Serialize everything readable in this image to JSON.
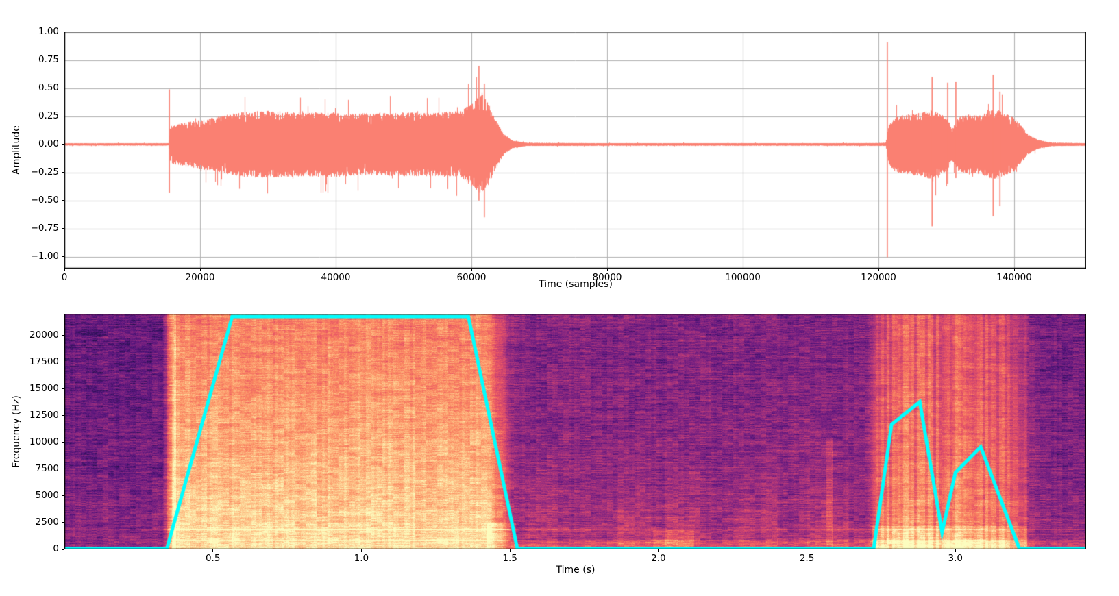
{
  "figure": {
    "background": "#ffffff",
    "text_color": "#000000",
    "grid_color": "#b0b0b0"
  },
  "chart_data": [
    {
      "type": "line",
      "name": "audio-waveform",
      "title": "",
      "xlabel": "Time (samples)",
      "ylabel": "Amplitude",
      "xlim": [
        0,
        150600
      ],
      "ylim": [
        -1.106,
        1.006
      ],
      "grid": true,
      "line_color": "#fa8072",
      "xticks": [
        {
          "v": 0,
          "label": "0"
        },
        {
          "v": 20000,
          "label": "20000"
        },
        {
          "v": 40000,
          "label": "40000"
        },
        {
          "v": 60000,
          "label": "60000"
        },
        {
          "v": 80000,
          "label": "80000"
        },
        {
          "v": 100000,
          "label": "100000"
        },
        {
          "v": 120000,
          "label": "120000"
        },
        {
          "v": 140000,
          "label": "140000"
        }
      ],
      "yticks": [
        {
          "v": 1.0,
          "label": "1.00"
        },
        {
          "v": 0.75,
          "label": "0.75"
        },
        {
          "v": 0.5,
          "label": "0.50"
        },
        {
          "v": 0.25,
          "label": "0.25"
        },
        {
          "v": 0.0,
          "label": "0.00"
        },
        {
          "v": -0.25,
          "label": "−0.25"
        },
        {
          "v": -0.5,
          "label": "−0.50"
        },
        {
          "v": -0.75,
          "label": "−0.75"
        },
        {
          "v": -1.0,
          "label": "−1.00"
        }
      ],
      "noise_floor": 0.01,
      "envelope": [
        [
          0,
          0.008
        ],
        [
          15300,
          0.008
        ],
        [
          15600,
          0.17
        ],
        [
          18000,
          0.2
        ],
        [
          22000,
          0.24
        ],
        [
          26000,
          0.29
        ],
        [
          30000,
          0.3
        ],
        [
          35000,
          0.285
        ],
        [
          40000,
          0.29
        ],
        [
          45000,
          0.275
        ],
        [
          50000,
          0.285
        ],
        [
          55000,
          0.285
        ],
        [
          58500,
          0.3
        ],
        [
          60500,
          0.4
        ],
        [
          61500,
          0.46
        ],
        [
          62500,
          0.36
        ],
        [
          63500,
          0.22
        ],
        [
          64800,
          0.09
        ],
        [
          66000,
          0.035
        ],
        [
          68000,
          0.014
        ],
        [
          80000,
          0.011
        ],
        [
          95000,
          0.011
        ],
        [
          110000,
          0.011
        ],
        [
          119000,
          0.012
        ],
        [
          121000,
          0.014
        ],
        [
          121500,
          0.18
        ],
        [
          122500,
          0.25
        ],
        [
          124500,
          0.27
        ],
        [
          126500,
          0.285
        ],
        [
          127800,
          0.32
        ],
        [
          129000,
          0.27
        ],
        [
          130000,
          0.25
        ],
        [
          130800,
          0.14
        ],
        [
          131800,
          0.25
        ],
        [
          133500,
          0.27
        ],
        [
          135000,
          0.26
        ],
        [
          136500,
          0.31
        ],
        [
          137500,
          0.31
        ],
        [
          138500,
          0.28
        ],
        [
          140000,
          0.24
        ],
        [
          141000,
          0.17
        ],
        [
          142000,
          0.09
        ],
        [
          143500,
          0.04
        ],
        [
          145500,
          0.016
        ],
        [
          150600,
          0.011
        ]
      ],
      "spikes": [
        [
          15470,
          0.49,
          -0.43
        ],
        [
          61100,
          0.7,
          -0.5
        ],
        [
          61900,
          0.54,
          -0.65
        ],
        [
          121300,
          0.91,
          -1.005
        ],
        [
          127900,
          0.6,
          -0.73
        ],
        [
          130200,
          0.55,
          -0.35
        ],
        [
          131400,
          0.56,
          -0.3
        ],
        [
          136900,
          0.62,
          -0.64
        ],
        [
          137900,
          0.47,
          -0.55
        ]
      ]
    },
    {
      "type": "heatmap",
      "name": "spectrogram",
      "title": "",
      "xlabel": "Time (s)",
      "ylabel": "Frequency (Hz)",
      "xlim": [
        0,
        3.44
      ],
      "ylim": [
        0,
        22050
      ],
      "grid": false,
      "colormap": "magma",
      "xticks": [
        {
          "v": 0.5,
          "label": "0.5"
        },
        {
          "v": 1.0,
          "label": "1.0"
        },
        {
          "v": 1.5,
          "label": "1.5"
        },
        {
          "v": 2.0,
          "label": "2.0"
        },
        {
          "v": 2.5,
          "label": "2.5"
        },
        {
          "v": 3.0,
          "label": "3.0"
        }
      ],
      "yticks": [
        {
          "v": 0,
          "label": "0"
        },
        {
          "v": 2500,
          "label": "2500"
        },
        {
          "v": 5000,
          "label": "5000"
        },
        {
          "v": 7500,
          "label": "7500"
        },
        {
          "v": 10000,
          "label": "10000"
        },
        {
          "v": 12500,
          "label": "12500"
        },
        {
          "v": 15000,
          "label": "15000"
        },
        {
          "v": 17500,
          "label": "17500"
        },
        {
          "v": 20000,
          "label": "20000"
        }
      ],
      "time_intensity_profile": [
        [
          0.0,
          0.31
        ],
        [
          0.33,
          0.31
        ],
        [
          0.37,
          0.745
        ],
        [
          1.42,
          0.745
        ],
        [
          1.5,
          0.42
        ],
        [
          1.56,
          0.375
        ],
        [
          2.7,
          0.375
        ],
        [
          2.745,
          0.62
        ],
        [
          2.92,
          0.64
        ],
        [
          2.96,
          0.56
        ],
        [
          3.0,
          0.63
        ],
        [
          3.16,
          0.6
        ],
        [
          3.22,
          0.46
        ],
        [
          3.28,
          0.335
        ],
        [
          3.44,
          0.335
        ]
      ],
      "loud_region": [
        0.36,
        1.5
      ],
      "burst2_region": [
        2.72,
        3.24
      ],
      "harmonic_lines": [
        {
          "f": 1900,
          "boost_loud": 0.2,
          "boost_quiet": 0.09,
          "halfwidth": 45
        },
        {
          "f": 900,
          "boost_loud": 0.1,
          "boost_quiet": 0.0,
          "halfwidth": 35
        },
        {
          "f": 15700,
          "boost_loud": 0.02,
          "boost_quiet": 0.06,
          "halfwidth": 45
        }
      ],
      "vertical_streaks": [
        {
          "t0": 0.345,
          "t1": 0.375,
          "amp": 0.12,
          "fmax": 22050
        },
        {
          "t0": 2.565,
          "t1": 2.585,
          "amp": 0.12,
          "fmax": 10500
        }
      ],
      "faint_patches": [
        {
          "t0": 1.56,
          "t1": 1.66,
          "amp": 0.05,
          "fmax": 12000
        },
        {
          "t0": 1.86,
          "t1": 1.98,
          "amp": 0.06,
          "fmax": 11000
        },
        {
          "t0": 2.02,
          "t1": 2.14,
          "amp": 0.07,
          "fmax": 11500
        },
        {
          "t0": 2.26,
          "t1": 2.4,
          "amp": 0.06,
          "fmax": 10500
        },
        {
          "t0": 2.5,
          "t1": 2.64,
          "amp": 0.06,
          "fmax": 11000
        }
      ],
      "bottom_bands": [
        {
          "t0": 1.5,
          "t1": 3.44,
          "fmax": 900,
          "amp": 0.12
        },
        {
          "t0": 1.98,
          "t1": 2.12,
          "fmax": 1800,
          "amp": 0.12
        },
        {
          "t0": 1.42,
          "t1": 1.52,
          "fmax": 2500,
          "amp": 0.1
        },
        {
          "t0": 2.72,
          "t1": 3.24,
          "fmax": 2200,
          "amp": 0.1
        }
      ],
      "overlay_line": {
        "name": "pitch-contour",
        "color": "#00ffff",
        "width": 5,
        "points": [
          [
            0.0,
            80
          ],
          [
            0.345,
            80
          ],
          [
            0.565,
            21800
          ],
          [
            1.36,
            21800
          ],
          [
            1.525,
            80
          ],
          [
            2.725,
            80
          ],
          [
            2.785,
            11700
          ],
          [
            2.88,
            13800
          ],
          [
            2.955,
            1600
          ],
          [
            3.0,
            7200
          ],
          [
            3.085,
            9600
          ],
          [
            3.215,
            80
          ],
          [
            3.44,
            80
          ]
        ]
      }
    }
  ]
}
